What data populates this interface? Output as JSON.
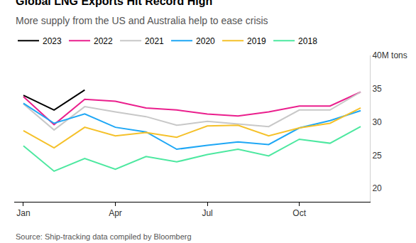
{
  "chart_data": {
    "type": "line",
    "title": "Global LNG Exports Hit Record High",
    "subtitle": "More supply from the US and Australia help to ease crisis",
    "source": "Source: Ship-tracking data compiled by Bloomberg",
    "categories": [
      "Jan",
      null,
      null,
      "Apr",
      null,
      null,
      "Jul",
      null,
      null,
      "Oct",
      null,
      null
    ],
    "series": [
      {
        "name": "2023",
        "color": "#000000",
        "values": [
          34.0,
          31.8,
          34.8,
          null,
          null,
          null,
          null,
          null,
          null,
          null,
          null,
          null
        ]
      },
      {
        "name": "2022",
        "color": "#ea1f8d",
        "values": [
          33.8,
          29.6,
          33.4,
          33.1,
          32.1,
          31.8,
          31.2,
          30.9,
          31.5,
          32.4,
          32.4,
          34.5
        ]
      },
      {
        "name": "2021",
        "color": "#c8c8c8",
        "values": [
          32.7,
          28.8,
          32.3,
          31.5,
          30.8,
          29.5,
          30.1,
          29.7,
          29.3,
          31.8,
          31.8,
          34.5
        ]
      },
      {
        "name": "2020",
        "color": "#1ea7f5",
        "values": [
          32.8,
          29.8,
          31.2,
          29.2,
          28.5,
          25.9,
          26.5,
          27.0,
          26.6,
          29.1,
          30.2,
          31.7
        ]
      },
      {
        "name": "2019",
        "color": "#f5c12a",
        "values": [
          28.7,
          26.1,
          29.2,
          27.9,
          28.4,
          27.7,
          29.4,
          29.5,
          27.9,
          29.1,
          29.8,
          32.1
        ]
      },
      {
        "name": "2018",
        "color": "#4de8a0",
        "values": [
          26.4,
          22.6,
          24.5,
          22.9,
          24.8,
          24.0,
          25.1,
          25.9,
          24.9,
          27.4,
          26.8,
          29.3
        ]
      }
    ],
    "ylim": [
      18,
      40
    ],
    "yticks": [
      20,
      25,
      30,
      {
        "value": 35,
        "label": "35"
      },
      {
        "value": 40,
        "label": "40M tons"
      }
    ],
    "grid": false,
    "legend": "top left"
  }
}
